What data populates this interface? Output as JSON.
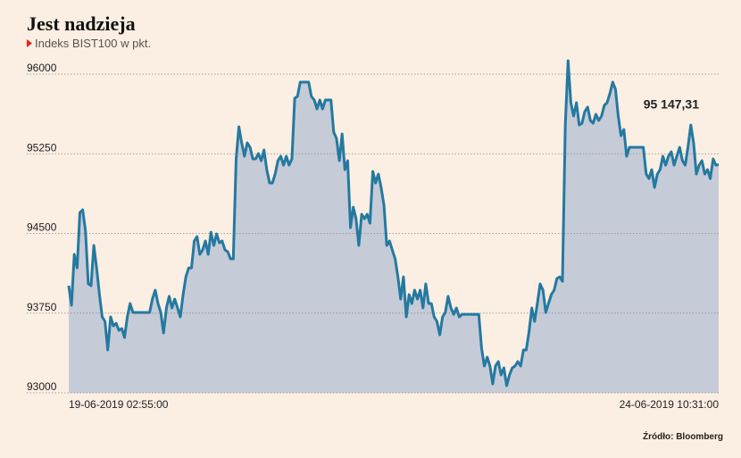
{
  "chart_data": {
    "type": "area",
    "title": "Jest nadzieja",
    "subtitle": "Indeks BIST100 w pkt.",
    "source": "Źródło: Bloomberg",
    "line_color": "#2479a0",
    "fill_color": "#c6cbd8",
    "grid": true,
    "ylim": [
      93000,
      96000
    ],
    "yticks": [
      93000,
      93750,
      94500,
      95250,
      96000
    ],
    "categories": [
      "19-06-2019 02:55:00",
      null,
      null,
      null,
      null,
      null,
      null,
      null,
      null,
      null,
      null,
      null,
      null,
      null,
      null,
      null,
      null,
      null,
      null,
      null,
      null,
      null,
      null,
      null,
      null,
      null,
      null,
      null,
      null,
      null,
      null,
      null,
      null,
      null,
      null,
      null,
      null,
      null,
      null,
      null,
      null,
      null,
      null,
      null,
      null,
      null,
      null,
      null,
      null,
      null,
      null,
      null,
      null,
      null,
      null,
      null,
      null,
      null,
      null,
      null,
      null,
      null,
      null,
      null,
      null,
      null,
      null,
      null,
      null,
      null,
      null,
      null,
      null,
      null,
      null,
      null,
      null,
      null,
      null,
      null,
      null,
      null,
      null,
      null,
      null,
      null,
      null,
      null,
      null,
      null,
      null,
      null,
      null,
      null,
      null,
      null,
      null,
      null,
      null,
      null,
      null,
      null,
      null,
      null,
      null,
      null,
      null,
      null,
      null,
      null,
      null,
      null,
      null,
      null,
      null,
      null,
      null,
      null,
      null,
      null,
      null,
      null,
      null,
      null,
      null,
      null,
      null,
      null,
      null,
      null,
      null,
      null,
      null,
      null,
      null,
      null,
      null,
      null,
      null,
      null,
      null,
      null,
      null,
      null,
      null,
      null,
      null,
      null,
      null,
      null,
      null,
      null,
      null,
      null,
      null,
      null,
      null,
      null,
      null,
      null,
      null,
      null,
      null,
      null,
      null,
      null,
      null,
      null,
      null,
      null,
      null,
      null,
      null,
      null,
      null,
      null,
      null,
      null,
      null,
      null,
      null,
      null,
      null,
      null,
      null,
      null,
      null,
      null,
      null,
      null,
      null,
      null,
      null,
      null,
      null,
      null,
      null,
      null,
      null,
      null,
      null,
      null,
      null,
      null,
      null,
      null,
      null,
      null,
      null,
      null,
      null,
      null,
      null,
      null,
      null,
      null,
      null,
      null,
      null,
      null,
      null,
      null,
      null,
      null,
      null,
      null,
      null,
      null,
      null,
      null,
      null,
      null,
      null,
      "24-06-2019 10:31:00"
    ],
    "values": [
      94008,
      93824,
      94303,
      94176,
      94697,
      94723,
      94529,
      94025,
      94008,
      94387,
      94176,
      93924,
      93714,
      93672,
      93403,
      93714,
      93630,
      93655,
      93588,
      93605,
      93521,
      93714,
      93840,
      93756,
      93756,
      93756,
      93756,
      93756,
      93756,
      93756,
      93882,
      93966,
      93840,
      93756,
      93563,
      93798,
      93908,
      93798,
      93882,
      93798,
      93714,
      93924,
      94092,
      94176,
      94176,
      94429,
      94471,
      94303,
      94345,
      94429,
      94303,
      94513,
      94387,
      94496,
      94412,
      94429,
      94345,
      94328,
      94261,
      94261,
      95202,
      95504,
      95353,
      95227,
      95353,
      95311,
      95202,
      95202,
      95252,
      95185,
      95286,
      95101,
      94975,
      94975,
      95059,
      95185,
      95227,
      95143,
      95227,
      95143,
      95202,
      95773,
      95790,
      95924,
      95924,
      95924,
      95924,
      95790,
      95756,
      95672,
      95756,
      95672,
      95756,
      95756,
      95756,
      95454,
      95395,
      95185,
      95437,
      95101,
      95185,
      94555,
      94748,
      94639,
      94387,
      94681,
      94639,
      94681,
      94597,
      95084,
      94975,
      95059,
      94933,
      94765,
      94387,
      94429,
      94345,
      94261,
      94092,
      93882,
      94092,
      93714,
      93924,
      93840,
      93966,
      93882,
      93966,
      93798,
      94025,
      93840,
      93840,
      93714,
      93672,
      93546,
      93714,
      93756,
      93908,
      93798,
      93739,
      93798,
      93714,
      93739,
      93739,
      93739,
      93739,
      93739,
      93739,
      93739,
      93420,
      93252,
      93336,
      93252,
      93084,
      93252,
      93294,
      93168,
      93235,
      93067,
      93168,
      93235,
      93252,
      93294,
      93252,
      93403,
      93403,
      93571,
      93798,
      93672,
      93840,
      94025,
      93966,
      93756,
      93840,
      93924,
      93966,
      94076,
      94092,
      94050,
      95521,
      96126,
      95731,
      95605,
      95731,
      95521,
      95538,
      95647,
      95689,
      95563,
      95538,
      95622,
      95563,
      95605,
      95706,
      95731,
      95815,
      95924,
      95857,
      95605,
      95420,
      95479,
      95227,
      95311,
      95311,
      95311,
      95311,
      95311,
      95311,
      95059,
      95017,
      95101,
      94933,
      95059,
      95101,
      95227,
      95143,
      95227,
      95269,
      95143,
      95227,
      95311,
      95185,
      95143,
      95311,
      95521,
      95353,
      95059,
      95143,
      95185,
      95059,
      95101,
      95017,
      95202,
      95143,
      95147.31
    ],
    "value_labels": [
      null,
      null,
      null,
      null,
      null,
      null,
      null,
      null,
      null,
      null,
      null,
      null,
      null,
      null,
      null,
      null,
      null,
      null,
      null,
      null,
      null,
      null,
      null,
      null,
      null,
      null,
      null,
      null,
      null,
      null,
      null,
      null,
      null,
      null,
      null,
      null,
      null,
      null,
      null,
      null,
      null,
      null,
      null,
      null,
      null,
      null,
      null,
      null,
      null,
      null,
      null,
      null,
      null,
      null,
      null,
      null,
      null,
      null,
      null,
      null,
      null,
      null,
      null,
      null,
      null,
      null,
      null,
      null,
      null,
      null,
      null,
      null,
      null,
      null,
      null,
      null,
      null,
      null,
      null,
      null,
      null,
      null,
      null,
      null,
      null,
      null,
      null,
      null,
      null,
      null,
      null,
      null,
      null,
      null,
      null,
      null,
      null,
      null,
      null,
      null,
      null,
      null,
      null,
      null,
      null,
      null,
      null,
      null,
      null,
      null,
      null,
      null,
      null,
      null,
      null,
      null,
      null,
      null,
      null,
      null,
      null,
      null,
      null,
      null,
      null,
      null,
      null,
      null,
      null,
      null,
      null,
      null,
      null,
      null,
      null,
      null,
      null,
      null,
      null,
      null,
      null,
      null,
      null,
      null,
      null,
      null,
      null,
      null,
      null,
      null,
      null,
      null,
      null,
      null,
      null,
      null,
      null,
      null,
      null,
      null,
      null,
      null,
      null,
      null,
      null,
      null,
      null,
      null,
      null,
      null,
      null,
      null,
      null,
      null,
      null,
      null,
      null,
      null,
      null,
      null,
      null,
      null,
      null,
      null,
      null,
      null,
      null,
      null,
      null,
      null,
      null,
      null,
      null,
      null,
      null,
      null,
      null,
      null,
      null,
      null,
      null,
      null,
      null,
      null,
      null,
      null,
      null,
      null,
      null,
      null,
      null,
      null,
      null,
      null,
      null,
      null,
      null,
      null,
      null,
      null,
      null,
      null,
      null,
      null,
      null,
      null,
      null,
      null,
      null,
      null,
      null,
      null,
      null,
      "95 147,31"
    ]
  }
}
